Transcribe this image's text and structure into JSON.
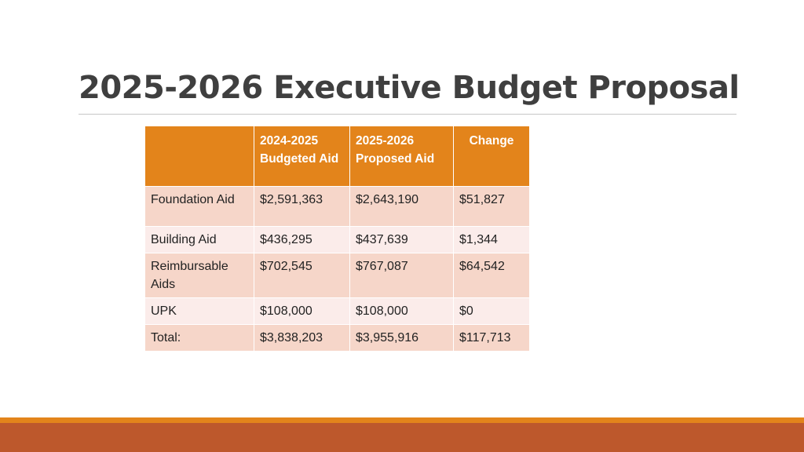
{
  "slide": {
    "title": "2025-2026 Executive Budget Proposal"
  },
  "table": {
    "headers": [
      "",
      "2024-2025 Budgeted Aid",
      "2025-2026 Proposed Aid",
      "Change"
    ],
    "rows": [
      {
        "label": "Foundation Aid",
        "budgeted": "$2,591,363",
        "proposed": "$2,643,190",
        "change": "$51,827"
      },
      {
        "label": "Building Aid",
        "budgeted": "$436,295",
        "proposed": "$437,639",
        "change": "$1,344"
      },
      {
        "label": "Reimbursable Aids",
        "budgeted": "$702,545",
        "proposed": "$767,087",
        "change": "$64,542"
      },
      {
        "label": "UPK",
        "budgeted": "$108,000",
        "proposed": "$108,000",
        "change": "$0"
      },
      {
        "label": "Total:",
        "budgeted": "$3,838,203",
        "proposed": "$3,955,916",
        "change": "$117,713"
      }
    ]
  },
  "colors": {
    "header_fill": "#e3841b",
    "row_dark": "#f6d6c9",
    "row_light": "#fbecea",
    "bottom_band": "#bd582c",
    "bottom_accent": "#e3841b",
    "title_text": "#3f3f3f"
  }
}
